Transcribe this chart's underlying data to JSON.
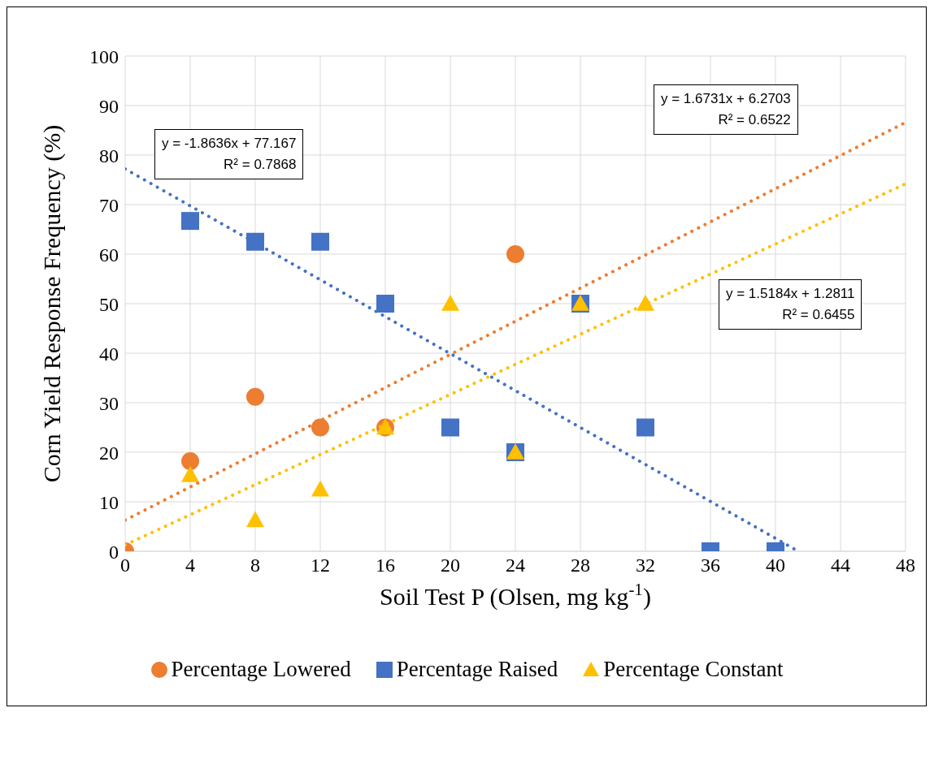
{
  "chart_data": {
    "type": "scatter",
    "xlabel": "Soil Test P (Olsen, mg kg$^{-1}$)",
    "ylabel": "Corn Yield Response Frequency (%)",
    "xlim": [
      0,
      48
    ],
    "xticks": [
      0,
      4,
      8,
      12,
      16,
      20,
      24,
      28,
      32,
      36,
      40,
      44,
      48
    ],
    "ylim": [
      0,
      100
    ],
    "yticks": [
      0,
      10,
      20,
      30,
      40,
      50,
      60,
      70,
      80,
      90,
      100
    ],
    "grid": true,
    "legend": "bottom",
    "series": [
      {
        "name": "Percentage Lowered",
        "marker": "circle",
        "color": "#ed7d31",
        "x": [
          0,
          4,
          8,
          12,
          16,
          24
        ],
        "values": [
          0,
          18.2,
          31.2,
          25,
          25,
          60
        ]
      },
      {
        "name": "Percentage Raised",
        "marker": "square",
        "color": "#4472c4",
        "x": [
          4,
          8,
          12,
          16,
          20,
          24,
          28,
          32,
          36,
          40
        ],
        "values": [
          66.7,
          62.5,
          62.5,
          50,
          25,
          20,
          50,
          25,
          0,
          0
        ]
      },
      {
        "name": "Percentage Constant",
        "marker": "triangle",
        "color": "#ffc000",
        "x": [
          4,
          8,
          12,
          16,
          20,
          24,
          28,
          32
        ],
        "values": [
          15.4,
          6.3,
          12.5,
          25,
          50,
          20,
          50,
          50
        ]
      },
      {
        "type": "line",
        "color": "#4472c4",
        "line_style": "dotted",
        "marker": "none",
        "x": [
          0,
          41.4
        ],
        "values": [
          77.2,
          0
        ]
      },
      {
        "type": "line",
        "color": "#ed7d31",
        "line_style": "dotted",
        "marker": "none",
        "x": [
          0,
          48
        ],
        "values": [
          6.3,
          86.6
        ]
      },
      {
        "type": "line",
        "color": "#ffc000",
        "line_style": "dotted",
        "marker": "none",
        "x": [
          0,
          48
        ],
        "values": [
          1.3,
          74.2
        ]
      }
    ],
    "annotations": [
      "y = -1.8636x + 77.167",
      "R² = 0.7868",
      "y = 1.6731x + 6.2703",
      "R² = 0.6522",
      "y = 1.5184x + 1.2811",
      "R² = 0.6455"
    ]
  }
}
